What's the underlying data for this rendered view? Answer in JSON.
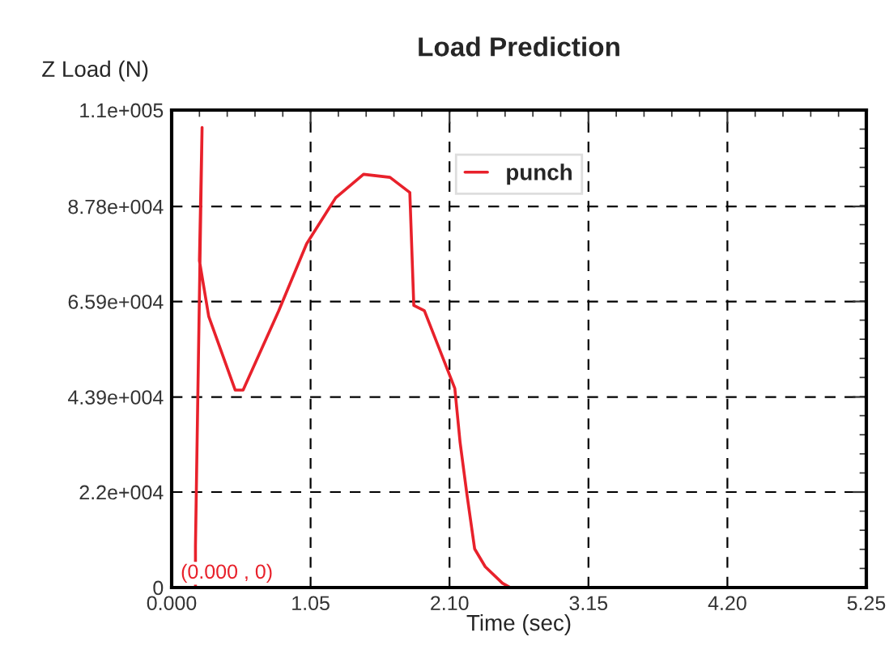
{
  "chart_data": {
    "type": "line",
    "title": "Load Prediction",
    "xlabel": "Time (sec)",
    "ylabel": "Z Load (N)",
    "series": [
      {
        "name": "punch",
        "color": "#e8212b",
        "x": [
          0,
          0.18,
          0.18,
          0.23,
          0.21,
          0.28,
          0.48,
          0.54,
          0.81,
          1.02,
          1.24,
          1.45,
          1.65,
          1.8,
          1.83,
          1.91,
          2.14,
          2.18,
          2.23,
          2.29,
          2.37,
          2.5,
          2.56,
          4.95
        ],
        "values": [
          0,
          0,
          9700,
          106000,
          75300,
          62500,
          45500,
          45500,
          63800,
          79200,
          89800,
          95200,
          94500,
          91000,
          65000,
          63800,
          45900,
          33400,
          21800,
          8900,
          4800,
          1000,
          0,
          0
        ]
      }
    ],
    "xlim": [
      0,
      5.25
    ],
    "xticks": [
      {
        "value": 0,
        "label": "0.000"
      },
      1.05,
      {
        "value": 2.1,
        "label": "2.10"
      },
      3.15,
      {
        "value": 4.2,
        "label": "4.20"
      },
      5.25
    ],
    "ylim": [
      0,
      110000
    ],
    "yticks": [
      {
        "value": 0,
        "label": "0"
      },
      {
        "value": 22000,
        "label": "2.2e+004"
      },
      {
        "value": 43900,
        "label": "4.39e+004"
      },
      {
        "value": 65900,
        "label": "6.59e+004"
      },
      {
        "value": 87800,
        "label": "8.78e+004"
      },
      {
        "value": 110000,
        "label": "1.1e+005"
      }
    ],
    "annotations": [
      {
        "text": "(0.000 , 0)",
        "x": 0,
        "y": 0
      }
    ],
    "grid": true,
    "legend": "top",
    "line_style": "solid",
    "marker": "none"
  }
}
